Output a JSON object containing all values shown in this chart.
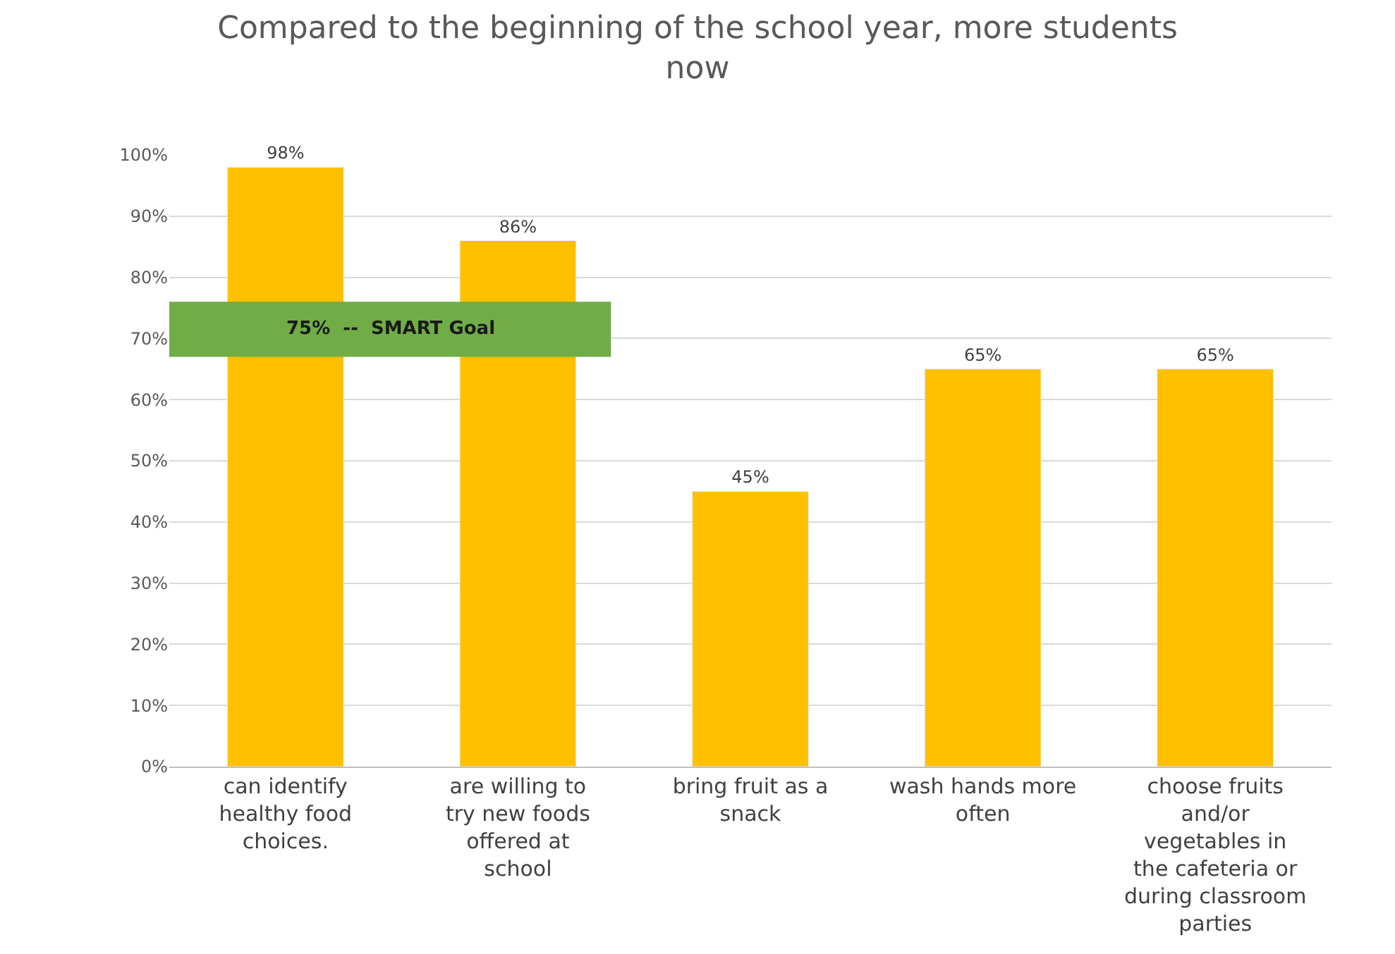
{
  "chart_data": {
    "type": "bar",
    "title": "Compared to the beginning of the school year, more students now",
    "categories": [
      "can identify healthy food choices.",
      "are willing to try new foods offered at school",
      "bring fruit as a snack",
      "wash hands more often",
      "choose fruits and/or vegetables in the cafeteria or during classroom parties"
    ],
    "values": [
      98,
      86,
      45,
      65,
      65
    ],
    "value_labels": [
      "98%",
      "86%",
      "45%",
      "65%",
      "65%"
    ],
    "color": "#ffc000",
    "ylim": [
      0,
      100
    ],
    "yticks": [
      {
        "value": 0,
        "label": "0%"
      },
      {
        "value": 10,
        "label": "10%"
      },
      {
        "value": 20,
        "label": "20%"
      },
      {
        "value": 30,
        "label": "30%"
      },
      {
        "value": 40,
        "label": "40%"
      },
      {
        "value": 50,
        "label": "50%"
      },
      {
        "value": 60,
        "label": "60%"
      },
      {
        "value": 70,
        "label": "70%"
      },
      {
        "value": 80,
        "label": "80%"
      },
      {
        "value": 90,
        "label": "90%"
      },
      {
        "value": 100,
        "label": "100%"
      }
    ],
    "bands": [
      {
        "axis": "y",
        "from": 67,
        "to": 76,
        "label": "75%  --  SMART Goal",
        "color": "#70ad47"
      }
    ],
    "grid": "y",
    "legend": false
  }
}
